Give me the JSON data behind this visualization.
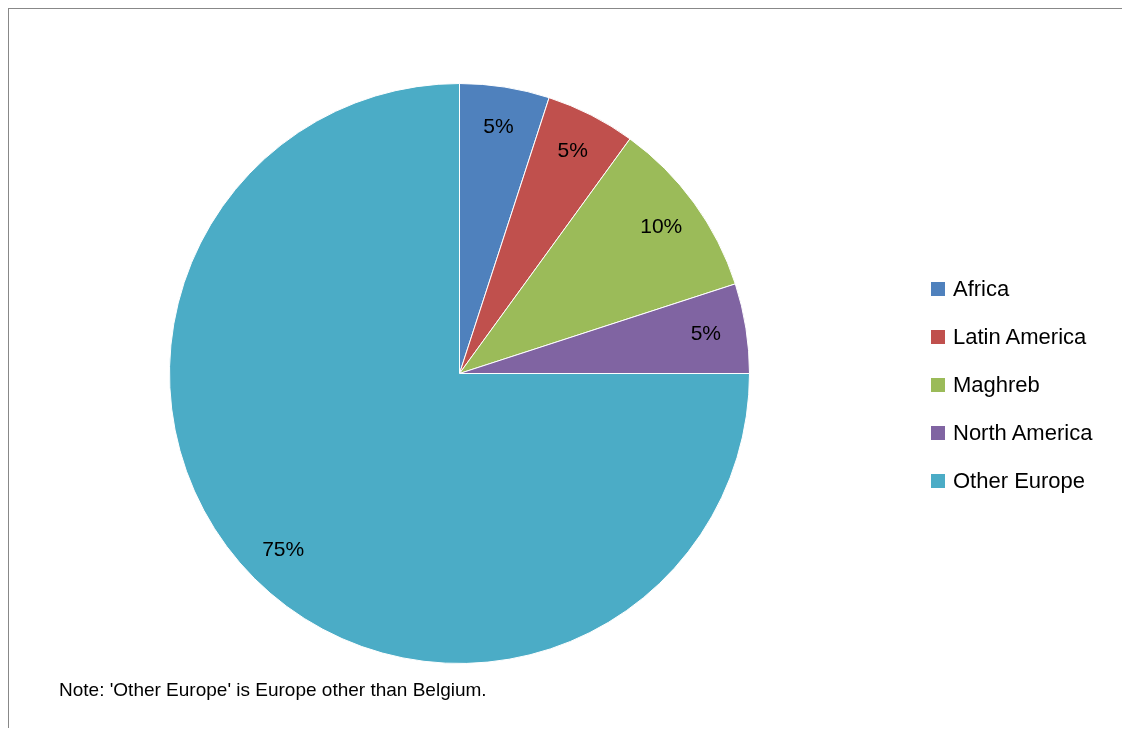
{
  "chart_data": {
    "type": "pie",
    "categories": [
      "Africa",
      "Latin America",
      "Maghreb",
      "North America",
      "Other Europe"
    ],
    "values": [
      5,
      5,
      10,
      5,
      75
    ],
    "value_labels": [
      "5%",
      "5%",
      "10%",
      "5%",
      "75%"
    ],
    "colors": [
      "#4f81bd",
      "#c0504d",
      "#9bbb59",
      "#8064a2",
      "#4bacc6"
    ],
    "legend": "right",
    "annotations": [
      "Note: 'Other Europe' is Europe other than Belgium."
    ]
  }
}
